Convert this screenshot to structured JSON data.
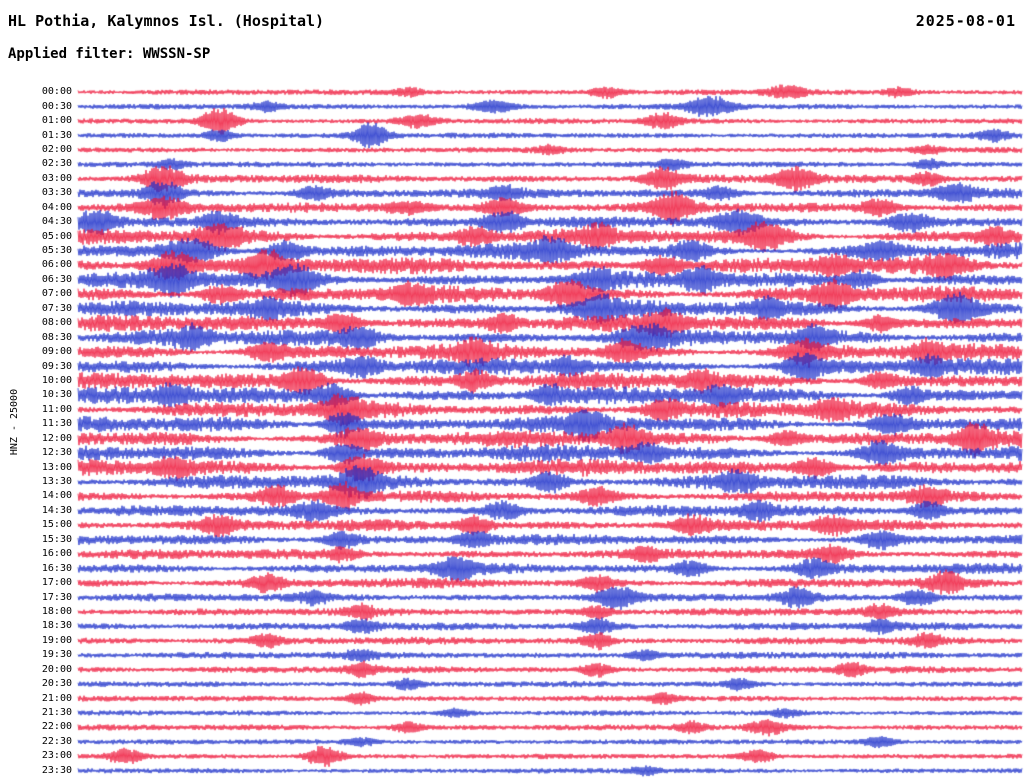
{
  "header": {
    "station_title": "HL Pothia, Kalymnos Isl. (Hospital)",
    "date": "2025-08-01",
    "filter_label": "Applied filter: WWSSN-SP"
  },
  "chart_data": {
    "type": "line",
    "title": "HL Pothia, Kalymnos Isl. (Hospital)",
    "subtitle": "Applied filter: WWSSN-SP",
    "date": "2025-08-01",
    "ylabel": "HNZ - 25000",
    "xlabel": "",
    "row_duration_minutes": 30,
    "x_range_hours": [
      0,
      24
    ],
    "grid": false,
    "legend": "none",
    "colors": {
      "red": "#ee0f33",
      "blue": "#1428c8"
    },
    "rows": [
      {
        "label": "00:00",
        "color": "red",
        "noise": 1.8,
        "swell": 0.15,
        "bursts": [
          [
            0.35,
            4,
            10
          ],
          [
            0.56,
            5,
            12
          ],
          [
            0.75,
            6,
            14
          ],
          [
            0.87,
            4,
            10
          ]
        ]
      },
      {
        "label": "00:30",
        "color": "blue",
        "noise": 1.8,
        "swell": 0.15,
        "bursts": [
          [
            0.2,
            4,
            10
          ],
          [
            0.44,
            6,
            14
          ],
          [
            0.67,
            10,
            16
          ]
        ]
      },
      {
        "label": "01:00",
        "color": "red",
        "noise": 1.8,
        "swell": 0.15,
        "bursts": [
          [
            0.15,
            13,
            12
          ],
          [
            0.36,
            6,
            14
          ],
          [
            0.62,
            8,
            12
          ]
        ]
      },
      {
        "label": "01:30",
        "color": "blue",
        "noise": 1.8,
        "swell": 0.15,
        "bursts": [
          [
            0.31,
            13,
            12
          ],
          [
            0.15,
            6,
            10
          ],
          [
            0.97,
            5,
            10
          ]
        ]
      },
      {
        "label": "02:00",
        "color": "red",
        "noise": 1.8,
        "swell": 0.15,
        "bursts": [
          [
            0.5,
            4,
            10
          ],
          [
            0.9,
            4,
            10
          ]
        ]
      },
      {
        "label": "02:30",
        "color": "blue",
        "noise": 1.9,
        "swell": 0.15,
        "bursts": [
          [
            0.1,
            4,
            10
          ],
          [
            0.63,
            5,
            10
          ],
          [
            0.9,
            5,
            10
          ]
        ]
      },
      {
        "label": "03:00",
        "color": "red",
        "noise": 2.6,
        "swell": 0.25,
        "bursts": [
          [
            0.09,
            12,
            14
          ],
          [
            0.62,
            10,
            12
          ],
          [
            0.76,
            10,
            14
          ],
          [
            0.9,
            6,
            12
          ]
        ]
      },
      {
        "label": "03:30",
        "color": "blue",
        "noise": 2.8,
        "swell": 0.25,
        "bursts": [
          [
            0.09,
            12,
            12
          ],
          [
            0.25,
            6,
            12
          ],
          [
            0.45,
            5,
            12
          ],
          [
            0.68,
            6,
            12
          ],
          [
            0.93,
            8,
            14
          ]
        ]
      },
      {
        "label": "04:00",
        "color": "red",
        "noise": 3.0,
        "swell": 0.25,
        "bursts": [
          [
            0.09,
            10,
            14
          ],
          [
            0.35,
            6,
            16
          ],
          [
            0.45,
            8,
            14
          ],
          [
            0.63,
            13,
            14
          ],
          [
            0.85,
            7,
            12
          ]
        ]
      },
      {
        "label": "04:30",
        "color": "blue",
        "noise": 3.2,
        "swell": 0.25,
        "bursts": [
          [
            0.02,
            10,
            12
          ],
          [
            0.15,
            9,
            12
          ],
          [
            0.45,
            10,
            14
          ],
          [
            0.7,
            10,
            16
          ],
          [
            0.88,
            8,
            14
          ]
        ]
      },
      {
        "label": "05:00",
        "color": "red",
        "noise": 4.0,
        "swell": 0.4,
        "bursts": [
          [
            0.15,
            10,
            16
          ],
          [
            0.42,
            8,
            14
          ],
          [
            0.55,
            8,
            12
          ],
          [
            0.73,
            12,
            16
          ],
          [
            0.97,
            8,
            12
          ]
        ]
      },
      {
        "label": "05:30",
        "color": "blue",
        "noise": 4.0,
        "swell": 0.4,
        "bursts": [
          [
            0.12,
            10,
            16
          ],
          [
            0.22,
            10,
            14
          ],
          [
            0.5,
            9,
            14
          ],
          [
            0.65,
            8,
            12
          ],
          [
            0.85,
            8,
            14
          ]
        ]
      },
      {
        "label": "06:00",
        "color": "red",
        "noise": 4.2,
        "swell": 0.4,
        "bursts": [
          [
            0.1,
            14,
            18
          ],
          [
            0.2,
            12,
            14
          ],
          [
            0.62,
            10,
            14
          ],
          [
            0.8,
            8,
            12
          ],
          [
            0.92,
            10,
            14
          ]
        ]
      },
      {
        "label": "06:30",
        "color": "blue",
        "noise": 4.2,
        "swell": 0.4,
        "bursts": [
          [
            0.1,
            12,
            16
          ],
          [
            0.23,
            12,
            14
          ],
          [
            0.55,
            8,
            12
          ],
          [
            0.66,
            10,
            12
          ],
          [
            0.83,
            8,
            12
          ]
        ]
      },
      {
        "label": "07:00",
        "color": "red",
        "noise": 4.2,
        "swell": 0.4,
        "bursts": [
          [
            0.15,
            8,
            14
          ],
          [
            0.35,
            8,
            12
          ],
          [
            0.52,
            12,
            16
          ],
          [
            0.8,
            10,
            14
          ]
        ]
      },
      {
        "label": "07:30",
        "color": "blue",
        "noise": 4.2,
        "swell": 0.4,
        "bursts": [
          [
            0.2,
            8,
            12
          ],
          [
            0.55,
            10,
            16
          ],
          [
            0.73,
            8,
            12
          ],
          [
            0.93,
            13,
            16
          ]
        ]
      },
      {
        "label": "08:00",
        "color": "red",
        "noise": 4.2,
        "swell": 0.4,
        "bursts": [
          [
            0.28,
            10,
            14
          ],
          [
            0.45,
            8,
            12
          ],
          [
            0.62,
            10,
            14
          ],
          [
            0.85,
            8,
            12
          ]
        ]
      },
      {
        "label": "08:30",
        "color": "blue",
        "noise": 4.2,
        "swell": 0.4,
        "bursts": [
          [
            0.12,
            8,
            12
          ],
          [
            0.3,
            9,
            12
          ],
          [
            0.6,
            10,
            16
          ],
          [
            0.78,
            8,
            12
          ]
        ]
      },
      {
        "label": "09:00",
        "color": "red",
        "noise": 4.2,
        "swell": 0.4,
        "bursts": [
          [
            0.2,
            8,
            14
          ],
          [
            0.42,
            8,
            12
          ],
          [
            0.58,
            9,
            12
          ],
          [
            0.77,
            10,
            14
          ],
          [
            0.9,
            8,
            12
          ]
        ]
      },
      {
        "label": "09:30",
        "color": "blue",
        "noise": 4.2,
        "swell": 0.4,
        "bursts": [
          [
            0.3,
            8,
            12
          ],
          [
            0.52,
            8,
            12
          ],
          [
            0.77,
            12,
            14
          ],
          [
            0.9,
            7,
            12
          ]
        ]
      },
      {
        "label": "10:00",
        "color": "red",
        "noise": 4.3,
        "swell": 0.4,
        "bursts": [
          [
            0.24,
            12,
            14
          ],
          [
            0.42,
            9,
            12
          ],
          [
            0.66,
            8,
            12
          ],
          [
            0.85,
            8,
            12
          ]
        ]
      },
      {
        "label": "10:30",
        "color": "blue",
        "noise": 4.3,
        "swell": 0.4,
        "bursts": [
          [
            0.1,
            8,
            12
          ],
          [
            0.27,
            10,
            14
          ],
          [
            0.5,
            8,
            12
          ],
          [
            0.68,
            8,
            12
          ],
          [
            0.88,
            8,
            12
          ]
        ]
      },
      {
        "label": "11:00",
        "color": "red",
        "noise": 4.3,
        "swell": 0.4,
        "bursts": [
          [
            0.28,
            10,
            14
          ],
          [
            0.62,
            9,
            12
          ],
          [
            0.8,
            8,
            12
          ]
        ]
      },
      {
        "label": "11:30",
        "color": "blue",
        "noise": 4.3,
        "swell": 0.4,
        "bursts": [
          [
            0.28,
            12,
            12
          ],
          [
            0.54,
            11,
            12
          ],
          [
            0.86,
            8,
            12
          ]
        ]
      },
      {
        "label": "12:00",
        "color": "red",
        "noise": 4.2,
        "swell": 0.4,
        "bursts": [
          [
            0.3,
            10,
            14
          ],
          [
            0.58,
            12,
            14
          ],
          [
            0.75,
            8,
            12
          ],
          [
            0.95,
            12,
            12
          ]
        ]
      },
      {
        "label": "12:30",
        "color": "blue",
        "noise": 4.2,
        "swell": 0.4,
        "bursts": [
          [
            0.28,
            9,
            12
          ],
          [
            0.6,
            8,
            12
          ],
          [
            0.85,
            10,
            14
          ]
        ]
      },
      {
        "label": "13:00",
        "color": "red",
        "noise": 4.2,
        "swell": 0.4,
        "bursts": [
          [
            0.1,
            8,
            12
          ],
          [
            0.3,
            13,
            14
          ],
          [
            0.78,
            10,
            14
          ]
        ]
      },
      {
        "label": "13:30",
        "color": "blue",
        "noise": 4.0,
        "swell": 0.4,
        "bursts": [
          [
            0.3,
            14,
            12
          ],
          [
            0.5,
            8,
            12
          ],
          [
            0.7,
            8,
            12
          ]
        ]
      },
      {
        "label": "14:00",
        "color": "red",
        "noise": 3.2,
        "swell": 0.3,
        "bursts": [
          [
            0.21,
            8,
            12
          ],
          [
            0.28,
            12,
            12
          ],
          [
            0.55,
            8,
            12
          ],
          [
            0.9,
            8,
            12
          ]
        ]
      },
      {
        "label": "14:30",
        "color": "blue",
        "noise": 3.2,
        "swell": 0.3,
        "bursts": [
          [
            0.25,
            8,
            12
          ],
          [
            0.45,
            8,
            12
          ],
          [
            0.72,
            8,
            12
          ],
          [
            0.9,
            9,
            12
          ]
        ]
      },
      {
        "label": "15:00",
        "color": "red",
        "noise": 3.2,
        "swell": 0.3,
        "bursts": [
          [
            0.15,
            8,
            12
          ],
          [
            0.42,
            8,
            12
          ],
          [
            0.65,
            8,
            12
          ],
          [
            0.8,
            8,
            12
          ]
        ]
      },
      {
        "label": "15:30",
        "color": "blue",
        "noise": 3.0,
        "swell": 0.3,
        "bursts": [
          [
            0.28,
            8,
            12
          ],
          [
            0.42,
            7,
            12
          ],
          [
            0.85,
            8,
            12
          ]
        ]
      },
      {
        "label": "16:00",
        "color": "red",
        "noise": 2.9,
        "swell": 0.3,
        "bursts": [
          [
            0.28,
            6,
            10
          ],
          [
            0.6,
            6,
            10
          ],
          [
            0.8,
            7,
            12
          ]
        ]
      },
      {
        "label": "16:30",
        "color": "blue",
        "noise": 2.9,
        "swell": 0.3,
        "bursts": [
          [
            0.4,
            9,
            14
          ],
          [
            0.65,
            7,
            12
          ],
          [
            0.78,
            8,
            12
          ]
        ]
      },
      {
        "label": "17:00",
        "color": "red",
        "noise": 2.8,
        "swell": 0.3,
        "bursts": [
          [
            0.2,
            7,
            12
          ],
          [
            0.55,
            7,
            12
          ],
          [
            0.92,
            9,
            12
          ]
        ]
      },
      {
        "label": "17:30",
        "color": "blue",
        "noise": 2.4,
        "swell": 0.2,
        "bursts": [
          [
            0.25,
            6,
            10
          ],
          [
            0.57,
            10,
            14
          ],
          [
            0.76,
            9,
            12
          ],
          [
            0.89,
            8,
            12
          ]
        ]
      },
      {
        "label": "18:00",
        "color": "red",
        "noise": 2.4,
        "swell": 0.2,
        "bursts": [
          [
            0.3,
            6,
            10
          ],
          [
            0.55,
            6,
            10
          ],
          [
            0.85,
            6,
            10
          ]
        ]
      },
      {
        "label": "18:30",
        "color": "blue",
        "noise": 2.4,
        "swell": 0.2,
        "bursts": [
          [
            0.3,
            6,
            10
          ],
          [
            0.55,
            7,
            12
          ],
          [
            0.85,
            6,
            10
          ]
        ]
      },
      {
        "label": "19:00",
        "color": "red",
        "noise": 2.3,
        "swell": 0.2,
        "bursts": [
          [
            0.2,
            6,
            10
          ],
          [
            0.55,
            7,
            10
          ],
          [
            0.9,
            6,
            10
          ]
        ]
      },
      {
        "label": "19:30",
        "color": "blue",
        "noise": 2.2,
        "swell": 0.2,
        "bursts": [
          [
            0.3,
            5,
            10
          ],
          [
            0.6,
            5,
            10
          ]
        ]
      },
      {
        "label": "20:00",
        "color": "red",
        "noise": 2.2,
        "swell": 0.2,
        "bursts": [
          [
            0.3,
            6,
            10
          ],
          [
            0.55,
            6,
            10
          ],
          [
            0.82,
            6,
            10
          ]
        ]
      },
      {
        "label": "20:30",
        "color": "blue",
        "noise": 1.9,
        "swell": 0.15,
        "bursts": [
          [
            0.35,
            5,
            10
          ],
          [
            0.7,
            5,
            10
          ]
        ]
      },
      {
        "label": "21:00",
        "color": "red",
        "noise": 1.9,
        "swell": 0.15,
        "bursts": [
          [
            0.3,
            6,
            10
          ],
          [
            0.62,
            5,
            10
          ]
        ]
      },
      {
        "label": "21:30",
        "color": "blue",
        "noise": 1.7,
        "swell": 0.15,
        "bursts": [
          [
            0.4,
            4,
            10
          ],
          [
            0.75,
            4,
            10
          ]
        ]
      },
      {
        "label": "22:00",
        "color": "red",
        "noise": 1.9,
        "swell": 0.15,
        "bursts": [
          [
            0.35,
            5,
            10
          ],
          [
            0.65,
            5,
            10
          ],
          [
            0.73,
            7,
            12
          ]
        ]
      },
      {
        "label": "22:30",
        "color": "blue",
        "noise": 1.7,
        "swell": 0.15,
        "bursts": [
          [
            0.3,
            4,
            10
          ],
          [
            0.85,
            5,
            12
          ]
        ]
      },
      {
        "label": "23:00",
        "color": "red",
        "noise": 1.7,
        "swell": 0.15,
        "bursts": [
          [
            0.05,
            7,
            12
          ],
          [
            0.26,
            10,
            12
          ],
          [
            0.72,
            6,
            12
          ]
        ]
      },
      {
        "label": "23:30",
        "color": "blue",
        "noise": 1.7,
        "swell": 0.15,
        "bursts": [
          [
            0.6,
            4,
            10
          ]
        ]
      }
    ]
  }
}
